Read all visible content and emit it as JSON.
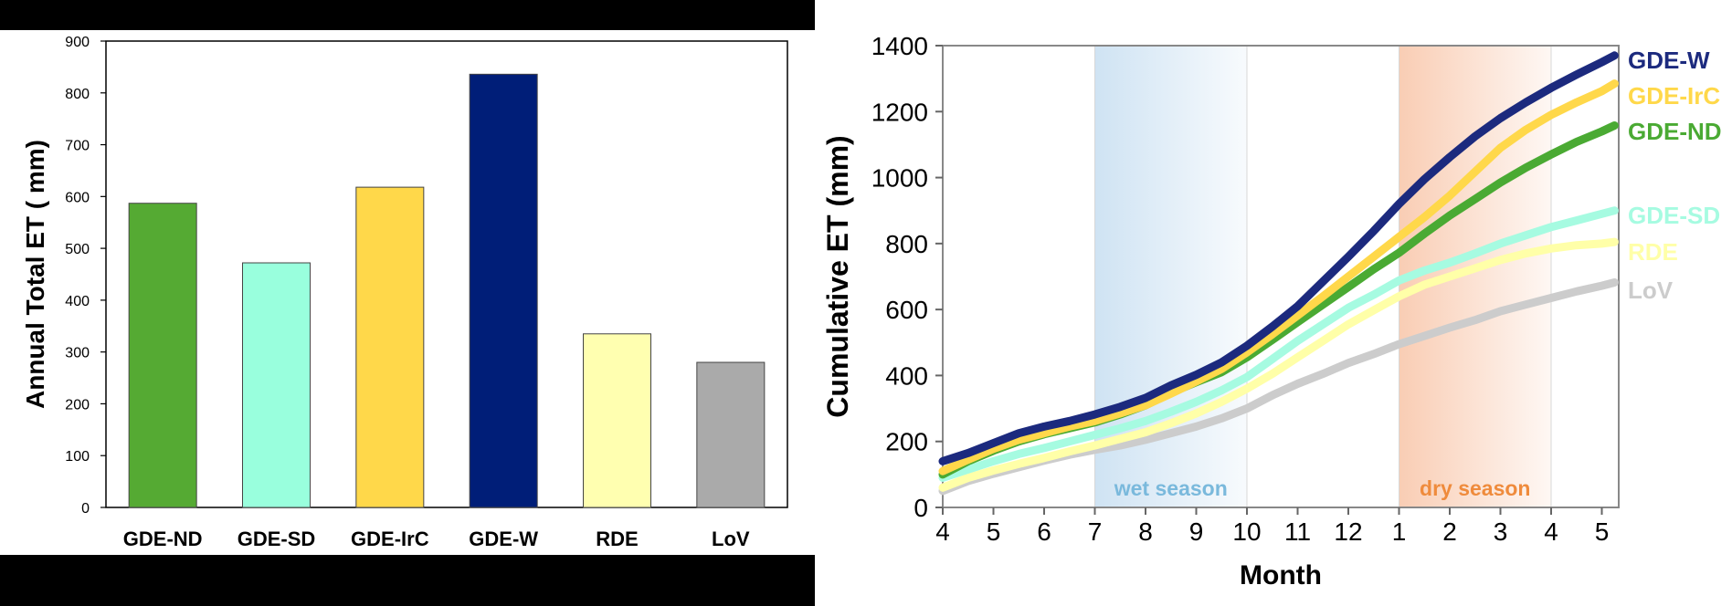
{
  "chart_data": [
    {
      "type": "bar",
      "ylabel": "Annual Total ET ( mm)",
      "ylim": [
        0,
        900
      ],
      "yticks": [
        "0",
        "100",
        "200",
        "300",
        "400",
        "500",
        "600",
        "700",
        "800",
        "900"
      ],
      "categories": [
        "GDE-ND",
        "GDE-SD",
        "GDE-IrC",
        "GDE-W",
        "RDE",
        "LoV"
      ],
      "values": [
        587,
        472,
        618,
        836,
        335,
        280
      ],
      "colors": [
        "#55aa33",
        "#99ffdd",
        "#ffd84a",
        "#001e78",
        "#ffffb0",
        "#aaaaaa"
      ],
      "grid": false
    },
    {
      "type": "line",
      "xlabel": "Month",
      "ylabel": "Cumulative ET (mm)",
      "xticks": [
        "4",
        "5",
        "6",
        "7",
        "8",
        "9",
        "10",
        "11",
        "12",
        "1",
        "2",
        "3",
        "4",
        "5"
      ],
      "ylim": [
        0,
        1400
      ],
      "yticks": [
        "0",
        "200",
        "400",
        "600",
        "800",
        "1000",
        "1200",
        "1400"
      ],
      "grid": false,
      "shaded_regions": [
        {
          "label": "wet season",
          "from_index": 3,
          "to_index": 6,
          "color": "#cfe3f3",
          "text_color": "#7ab9dc"
        },
        {
          "label": "dry season",
          "from_index": 9,
          "to_index": 12,
          "color": "#f9cdb4",
          "text_color": "#ef8b3c"
        }
      ],
      "series": [
        {
          "name": "GDE-W",
          "color": "#1c2a7e",
          "x": [
            0,
            0.5,
            1,
            1.5,
            2,
            2.5,
            3,
            3.5,
            4,
            4.5,
            5,
            5.5,
            6,
            6.5,
            7,
            7.5,
            8,
            8.5,
            9,
            9.5,
            10,
            10.5,
            11,
            11.5,
            12,
            12.5,
            13,
            13.25
          ],
          "y": [
            140,
            165,
            195,
            225,
            245,
            262,
            282,
            305,
            332,
            370,
            402,
            440,
            490,
            548,
            610,
            685,
            760,
            838,
            920,
            995,
            1062,
            1125,
            1180,
            1228,
            1272,
            1312,
            1350,
            1370
          ]
        },
        {
          "name": "GDE-IrC",
          "color": "#ffd84a",
          "x": [
            0,
            0.5,
            1,
            1.5,
            2,
            2.5,
            3,
            3.5,
            4,
            4.5,
            5,
            5.5,
            6,
            6.5,
            7,
            7.5,
            8,
            8.5,
            9,
            9.5,
            10,
            10.5,
            11,
            11.5,
            12,
            12.5,
            13,
            13.25
          ],
          "y": [
            110,
            145,
            178,
            205,
            225,
            245,
            262,
            285,
            310,
            345,
            382,
            420,
            470,
            525,
            582,
            640,
            700,
            760,
            820,
            880,
            945,
            1018,
            1090,
            1145,
            1190,
            1228,
            1262,
            1285
          ]
        },
        {
          "name": "GDE-ND",
          "color": "#4aaa33",
          "x": [
            0,
            0.5,
            1,
            1.5,
            2,
            2.5,
            3,
            3.5,
            4,
            4.5,
            5,
            5.5,
            6,
            6.5,
            7,
            7.5,
            8,
            8.5,
            9,
            9.5,
            10,
            10.5,
            11,
            11.5,
            12,
            12.5,
            13,
            13.25
          ],
          "y": [
            100,
            140,
            172,
            200,
            222,
            240,
            258,
            282,
            310,
            348,
            380,
            410,
            455,
            508,
            562,
            615,
            668,
            722,
            772,
            830,
            885,
            935,
            985,
            1030,
            1070,
            1108,
            1140,
            1158
          ]
        },
        {
          "name": "GDE-SD",
          "color": "#a6fbe1",
          "x": [
            0,
            0.5,
            1,
            1.5,
            2,
            2.5,
            3,
            3.5,
            4,
            4.5,
            5,
            5.5,
            6,
            6.5,
            7,
            7.5,
            8,
            8.5,
            9,
            9.5,
            10,
            10.5,
            11,
            11.5,
            12,
            12.5,
            13,
            13.25
          ],
          "y": [
            90,
            115,
            140,
            162,
            180,
            200,
            220,
            240,
            262,
            290,
            320,
            355,
            395,
            450,
            505,
            555,
            605,
            645,
            688,
            718,
            742,
            770,
            800,
            825,
            850,
            870,
            890,
            900
          ]
        },
        {
          "name": "RDE",
          "color": "#ffffa8",
          "x": [
            0,
            0.5,
            1,
            1.5,
            2,
            2.5,
            3,
            3.5,
            4,
            4.5,
            5,
            5.5,
            6,
            6.5,
            7,
            7.5,
            8,
            8.5,
            9,
            9.5,
            10,
            10.5,
            11,
            11.5,
            12,
            12.5,
            13,
            13.25
          ],
          "y": [
            60,
            90,
            112,
            132,
            150,
            170,
            188,
            208,
            228,
            255,
            285,
            320,
            360,
            405,
            455,
            505,
            555,
            598,
            640,
            675,
            700,
            725,
            750,
            770,
            785,
            795,
            800,
            805
          ]
        },
        {
          "name": "LoV",
          "color": "#cccccc",
          "x": [
            0,
            0.5,
            1,
            1.5,
            2,
            2.5,
            3,
            3.5,
            4,
            4.5,
            5,
            5.5,
            6,
            6.5,
            7,
            7.5,
            8,
            8.5,
            9,
            9.5,
            10,
            10.5,
            11,
            11.5,
            12,
            12.5,
            13,
            13.25
          ],
          "y": [
            50,
            80,
            102,
            122,
            142,
            160,
            175,
            188,
            205,
            225,
            245,
            270,
            300,
            340,
            375,
            405,
            438,
            465,
            495,
            520,
            545,
            568,
            595,
            615,
            635,
            655,
            672,
            682
          ]
        }
      ]
    }
  ]
}
